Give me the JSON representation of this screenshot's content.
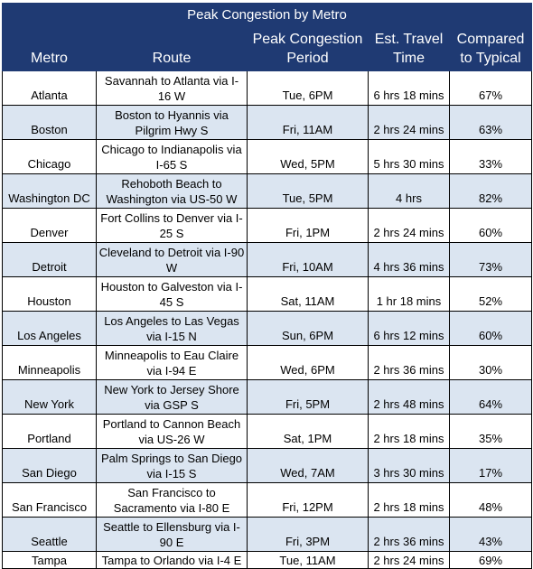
{
  "title": "Peak Congestion by Metro",
  "headers": {
    "metro": "Metro",
    "route": "Route",
    "period": "Peak Congestion Period",
    "time": "Est. Travel Time",
    "compared": "Compared to Typical"
  },
  "rows": [
    {
      "metro": "Atlanta",
      "route": "Savannah to Atlanta via I-16 W",
      "period": "Tue, 6PM",
      "time": "6 hrs 18 mins",
      "compared": "67%"
    },
    {
      "metro": "Boston",
      "route": "Boston to Hyannis via Pilgrim Hwy S",
      "period": "Fri, 11AM",
      "time": "2 hrs 24 mins",
      "compared": "63%"
    },
    {
      "metro": "Chicago",
      "route": "Chicago to Indianapolis via I-65 S",
      "period": "Wed, 5PM",
      "time": "5 hrs 30 mins",
      "compared": "33%"
    },
    {
      "metro": "Washington DC",
      "route": "Rehoboth Beach to Washington via US-50 W",
      "period": "Tue, 5PM",
      "time": "4 hrs",
      "compared": "82%"
    },
    {
      "metro": "Denver",
      "route": "Fort Collins to Denver via I-25 S",
      "period": "Fri, 1PM",
      "time": "2 hrs 24 mins",
      "compared": "60%"
    },
    {
      "metro": "Detroit",
      "route": "Cleveland to Detroit via I-90 W",
      "period": "Fri, 10AM",
      "time": "4 hrs 36 mins",
      "compared": "73%"
    },
    {
      "metro": "Houston",
      "route": "Houston to Galveston via I-45 S",
      "period": "Sat, 11AM",
      "time": "1 hr 18 mins",
      "compared": "52%"
    },
    {
      "metro": "Los Angeles",
      "route": "Los Angeles to Las Vegas via I-15 N",
      "period": "Sun, 6PM",
      "time": "6 hrs 12 mins",
      "compared": "60%"
    },
    {
      "metro": "Minneapolis",
      "route": "Minneapolis to Eau Claire via I-94 E",
      "period": "Wed, 6PM",
      "time": "2 hrs 36 mins",
      "compared": "30%"
    },
    {
      "metro": "New York",
      "route": "New York to Jersey Shore via GSP S",
      "period": "Fri, 5PM",
      "time": "2 hrs 48 mins",
      "compared": "64%"
    },
    {
      "metro": "Portland",
      "route": "Portland to Cannon Beach via US-26 W",
      "period": "Sat, 1PM",
      "time": "2 hrs 18 mins",
      "compared": "35%"
    },
    {
      "metro": "San Diego",
      "route": "Palm Springs to San Diego via I-15 S",
      "period": "Wed, 7AM",
      "time": "3 hrs 30 mins",
      "compared": "17%"
    },
    {
      "metro": "San Francisco",
      "route": "San Francisco to Sacramento via I-80 E",
      "period": "Fri, 12PM",
      "time": "2 hrs 18 mins",
      "compared": "48%"
    },
    {
      "metro": "Seattle",
      "route": "Seattle to Ellensburg via I-90 E",
      "period": "Fri, 3PM",
      "time": "2 hrs 36 mins",
      "compared": "43%"
    },
    {
      "metro": "Tampa",
      "route": "Tampa to Orlando via I-4 E",
      "period": "Tue, 11AM",
      "time": "2 hrs 24 mins",
      "compared": "69%"
    }
  ]
}
